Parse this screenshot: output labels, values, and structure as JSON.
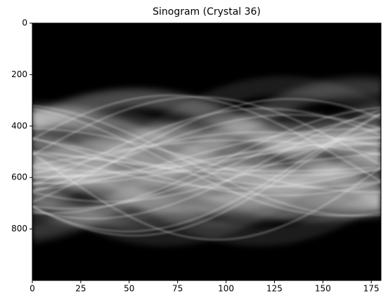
{
  "chart_data": {
    "type": "image",
    "title": "Sinogram (Crystal 36)",
    "xlim": [
      0,
      180
    ],
    "xticks": [
      0,
      25,
      50,
      75,
      100,
      125,
      150,
      175
    ],
    "ylim": [
      1000,
      0
    ],
    "yticks": [
      0,
      200,
      400,
      600,
      800
    ],
    "colormap": "gray"
  }
}
